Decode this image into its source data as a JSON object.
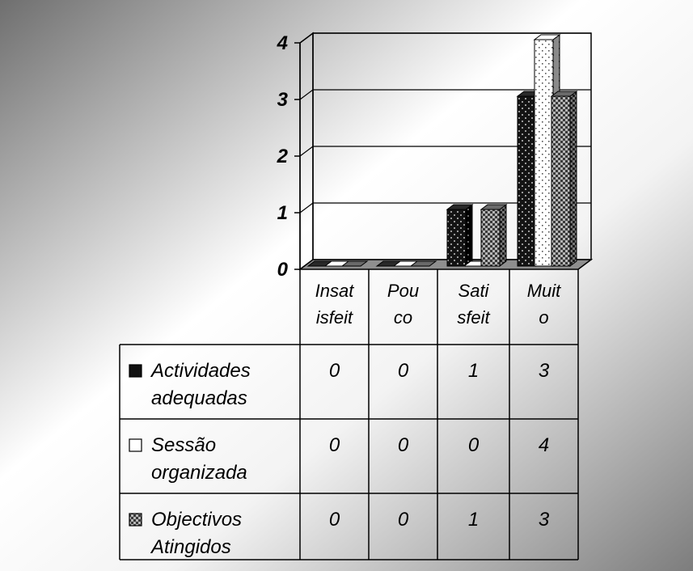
{
  "chart_data": {
    "type": "bar",
    "title": "",
    "xlabel": "",
    "ylabel": "",
    "ylim": [
      0,
      4
    ],
    "yticks": [
      "0",
      "1",
      "2",
      "3",
      "4"
    ],
    "grid": true,
    "categories": [
      "Insat isfeit",
      "Pou co",
      "Sati sfeit",
      "Muit o"
    ],
    "category_lines": [
      [
        "Insat",
        "isfeit"
      ],
      [
        "Pou",
        "co"
      ],
      [
        "Sati",
        "sfeit"
      ],
      [
        "Muit",
        "o"
      ]
    ],
    "series": [
      {
        "name": "Actividades adequadas",
        "name_lines": [
          "Actividades",
          "adequadas"
        ],
        "values": [
          0,
          0,
          1,
          3
        ],
        "pattern": "dark-dots"
      },
      {
        "name": "Sessão organizada",
        "name_lines": [
          "Sessão",
          "organizada"
        ],
        "values": [
          0,
          0,
          0,
          4
        ],
        "pattern": "light-dots"
      },
      {
        "name": "Objectivos Atingidos",
        "name_lines": [
          "Objectivos",
          "Atingidos"
        ],
        "values": [
          0,
          0,
          1,
          3
        ],
        "pattern": "checker"
      }
    ],
    "data_table": true
  },
  "colors": {
    "background_dark": "#7a7a7a",
    "background_light": "#ffffff",
    "bar_dark": "#141414",
    "bar_light": "#ffffff",
    "bar_checker": "#4a4a4a",
    "line": "#000000"
  }
}
